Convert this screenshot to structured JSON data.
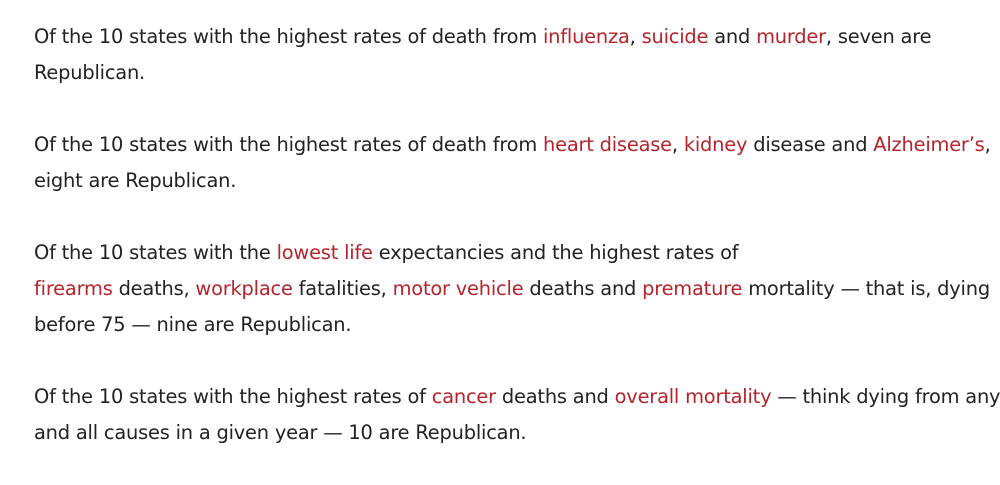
{
  "paragraphs": [
    {
      "lines": [
        [
          {
            "text": "Of the 10 states with the highest rates of death from "
          },
          {
            "text": "influenza",
            "link": true
          },
          {
            "text": ", "
          },
          {
            "text": "suicide",
            "link": true
          },
          {
            "text": " and "
          },
          {
            "text": "murder",
            "link": true
          },
          {
            "text": ", seven are"
          }
        ],
        [
          {
            "text": "Republican."
          }
        ]
      ]
    },
    {
      "lines": [
        [
          {
            "text": "Of the 10 states with the highest rates of death from "
          },
          {
            "text": "heart disease",
            "link": true
          },
          {
            "text": ", "
          },
          {
            "text": "kidney",
            "link": true
          },
          {
            "text": " disease and "
          },
          {
            "text": "Alzheimer’s",
            "link": true
          },
          {
            "text": ","
          }
        ],
        [
          {
            "text": "eight are Republican."
          }
        ]
      ]
    },
    {
      "lines": [
        [
          {
            "text": "Of the 10 states with the "
          },
          {
            "text": "lowest life",
            "link": true
          },
          {
            "text": " expectancies and the highest rates of"
          }
        ],
        [
          {
            "text": "firearms",
            "link": true
          },
          {
            "text": " deaths, "
          },
          {
            "text": "workplace",
            "link": true
          },
          {
            "text": " fatalities, "
          },
          {
            "text": "motor vehicle",
            "link": true
          },
          {
            "text": " deaths and "
          },
          {
            "text": "premature",
            "link": true
          },
          {
            "text": " mortality — that is, dying"
          }
        ],
        [
          {
            "text": "before 75 — nine are Republican."
          }
        ]
      ]
    },
    {
      "lines": [
        [
          {
            "text": "Of the 10 states with the highest rates of "
          },
          {
            "text": "cancer",
            "link": true
          },
          {
            "text": " deaths and "
          },
          {
            "text": "overall mortality",
            "link": true
          },
          {
            "text": " — think dying from any"
          }
        ],
        [
          {
            "text": "and all causes in a given year — 10 are Republican."
          }
        ]
      ]
    }
  ],
  "colors": {
    "text": "#222222",
    "link": "#b5232b",
    "background": "#ffffff"
  }
}
